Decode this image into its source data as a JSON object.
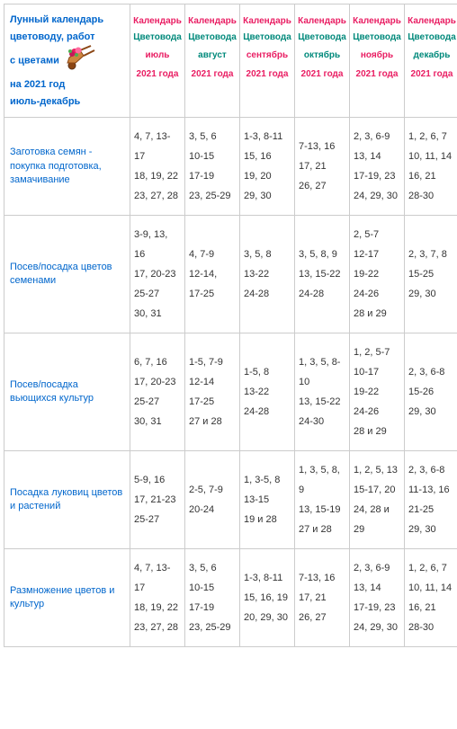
{
  "header_corner": {
    "lines": [
      "Лунный календарь",
      "цветоводу, работ",
      "с цветами",
      "на 2021 год",
      " июль-декабрь"
    ]
  },
  "columns": [
    {
      "t1": "Календарь",
      "t2": "Цветовода",
      "t3": "июль",
      "t3_color": "#e91e63",
      "t4": "2021 года"
    },
    {
      "t1": "Календарь",
      "t2": "Цветовода",
      "t3": "август",
      "t3_color": "#00897b",
      "t4": "2021 года"
    },
    {
      "t1": "Календарь",
      "t2": "Цветовода",
      "t3": "сентябрь",
      "t3_color": "#e91e63",
      "t4": "2021 года"
    },
    {
      "t1": "Календарь",
      "t2": "Цветовода",
      "t3": "октябрь",
      "t3_color": "#00897b",
      "t4": "2021 года"
    },
    {
      "t1": "Календарь",
      "t2": "Цветовода",
      "t3": "ноябрь",
      "t3_color": "#e91e63",
      "t4": "2021 года"
    },
    {
      "t1": "Календарь",
      "t2": "Цветовода",
      "t3": "декабрь",
      "t3_color": "#00897b",
      "t4": "2021 года"
    }
  ],
  "rows": [
    {
      "label": "Заготовка семян - покупка подготовка,  замачивание",
      "cells": [
        "4, 7, 13-17\n18, 19, 22\n23, 27, 28",
        "3, 5, 6\n10-15\n17-19\n23, 25-29",
        "1-3, 8-11\n15, 16\n19, 20\n29, 30",
        "7-13, 16\n17, 21\n26, 27",
        "2, 3, 6-9\n13, 14\n17-19, 23\n24, 29, 30",
        "1, 2, 6, 7\n10, 11, 14\n16, 21\n28-30"
      ]
    },
    {
      "label": "Посев/посадка цветов семенами",
      "cells": [
        "3-9, 13, 16\n17, 20-23\n25-27\n30, 31",
        "4, 7-9\n12-14,\n17-25",
        "3, 5, 8\n13-22\n24-28",
        "3, 5, 8, 9\n13, 15-22\n24-28",
        "2, 5-7\n12-17\n19-22\n24-26\n28 и 29",
        "2, 3, 7, 8\n15-25\n29, 30"
      ]
    },
    {
      "label": "Посев/посадка вьющихся культур",
      "cells": [
        "6, 7, 16\n17, 20-23\n25-27\n30, 31",
        "1-5, 7-9\n12-14\n17-25\n27 и 28",
        "1-5, 8\n13-22\n24-28",
        "1, 3, 5, 8-10\n13, 15-22\n24-30",
        "1, 2, 5-7\n10-17\n19-22\n24-26\n28 и 29",
        "2, 3, 6-8\n15-26\n29, 30"
      ]
    },
    {
      "label": "Посадка луковиц цветов и растений",
      "cells": [
        "5-9, 16\n17, 21-23\n25-27",
        "2-5, 7-9\n20-24",
        "1, 3-5, 8\n13-15\n19 и 28",
        "1, 3, 5, 8, 9\n13, 15-19\n27 и 28",
        "1, 2, 5, 13\n15-17, 20\n24, 28 и 29",
        "2, 3, 6-8\n11-13, 16\n21-25\n29, 30"
      ]
    },
    {
      "label": "Размножение цветов и культур",
      "cells": [
        "4, 7, 13-17\n18, 19, 22\n23, 27, 28",
        "3, 5, 6\n10-15\n17-19\n23, 25-29",
        "1-3, 8-11\n15, 16, 19\n20, 29, 30",
        "7-13, 16\n17, 21\n26, 27",
        "2, 3, 6-9\n13, 14\n17-19, 23\n24, 29, 30",
        "1, 2, 6, 7\n10, 11, 14\n16, 21\n28-30"
      ]
    }
  ]
}
